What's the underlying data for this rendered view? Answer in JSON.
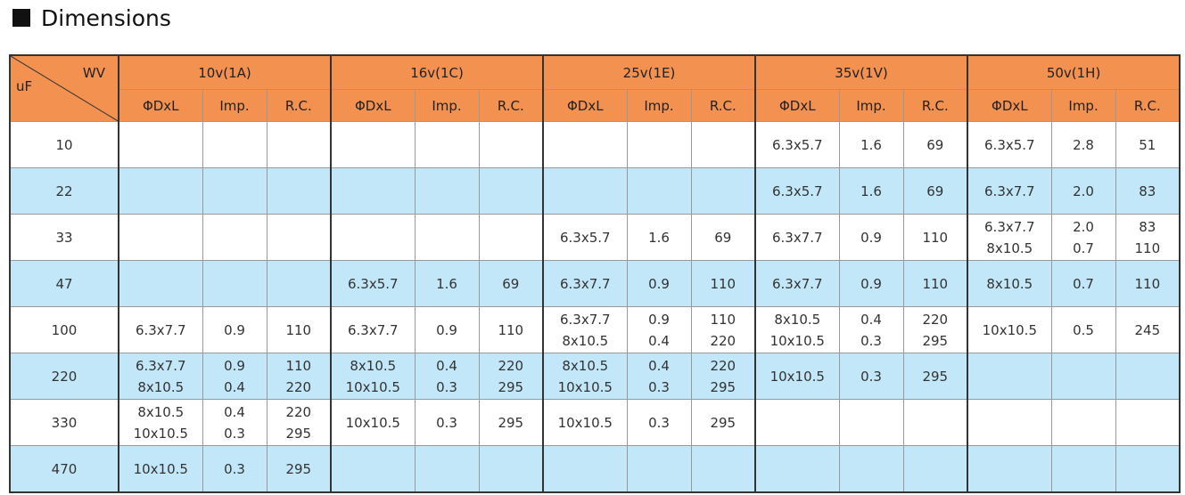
{
  "title": "Dimensions",
  "header": {
    "wv": "WV",
    "uf": "uF",
    "groups": [
      "10v(1A)",
      "16v(1C)",
      "25v(1E)",
      "35v(1V)",
      "50v(1H)"
    ],
    "subheaders": [
      "ΦDxL",
      "Imp.",
      "R.C."
    ]
  },
  "table": {
    "rows": [
      {
        "uf": "10",
        "cells": [
          [],
          [],
          [],
          [],
          [],
          [],
          [],
          [],
          [],
          [
            "6.3x5.7"
          ],
          [
            "1.6"
          ],
          [
            "69"
          ],
          [
            "6.3x5.7"
          ],
          [
            "2.8"
          ],
          [
            "51"
          ]
        ]
      },
      {
        "uf": "22",
        "cells": [
          [],
          [],
          [],
          [],
          [],
          [],
          [],
          [],
          [],
          [
            "6.3x5.7"
          ],
          [
            "1.6"
          ],
          [
            "69"
          ],
          [
            "6.3x7.7"
          ],
          [
            "2.0"
          ],
          [
            "83"
          ]
        ]
      },
      {
        "uf": "33",
        "cells": [
          [],
          [],
          [],
          [],
          [],
          [],
          [
            "6.3x5.7"
          ],
          [
            "1.6"
          ],
          [
            "69"
          ],
          [
            "6.3x7.7"
          ],
          [
            "0.9"
          ],
          [
            "110"
          ],
          [
            "6.3x7.7",
            "8x10.5"
          ],
          [
            "2.0",
            "0.7"
          ],
          [
            "83",
            "110"
          ]
        ]
      },
      {
        "uf": "47",
        "cells": [
          [],
          [],
          [],
          [
            "6.3x5.7"
          ],
          [
            "1.6"
          ],
          [
            "69"
          ],
          [
            "6.3x7.7"
          ],
          [
            "0.9"
          ],
          [
            "110"
          ],
          [
            "6.3x7.7"
          ],
          [
            "0.9"
          ],
          [
            "110"
          ],
          [
            "8x10.5"
          ],
          [
            "0.7"
          ],
          [
            "110"
          ]
        ]
      },
      {
        "uf": "100",
        "cells": [
          [
            "6.3x7.7"
          ],
          [
            "0.9"
          ],
          [
            "110"
          ],
          [
            "6.3x7.7"
          ],
          [
            "0.9"
          ],
          [
            "110"
          ],
          [
            "6.3x7.7",
            "8x10.5"
          ],
          [
            "0.9",
            "0.4"
          ],
          [
            "110",
            "220"
          ],
          [
            "8x10.5",
            "10x10.5"
          ],
          [
            "0.4",
            "0.3"
          ],
          [
            "220",
            "295"
          ],
          [
            "10x10.5"
          ],
          [
            "0.5"
          ],
          [
            "245"
          ]
        ]
      },
      {
        "uf": "220",
        "cells": [
          [
            "6.3x7.7",
            "8x10.5"
          ],
          [
            "0.9",
            "0.4"
          ],
          [
            "110",
            "220"
          ],
          [
            "8x10.5",
            "10x10.5"
          ],
          [
            "0.4",
            "0.3"
          ],
          [
            "220",
            "295"
          ],
          [
            "8x10.5",
            "10x10.5"
          ],
          [
            "0.4",
            "0.3"
          ],
          [
            "220",
            "295"
          ],
          [
            "10x10.5"
          ],
          [
            "0.3"
          ],
          [
            "295"
          ],
          [],
          [],
          []
        ]
      },
      {
        "uf": "330",
        "cells": [
          [
            "8x10.5",
            "10x10.5"
          ],
          [
            "0.4",
            "0.3"
          ],
          [
            "220",
            "295"
          ],
          [
            "10x10.5"
          ],
          [
            "0.3"
          ],
          [
            "295"
          ],
          [
            "10x10.5"
          ],
          [
            "0.3"
          ],
          [
            "295"
          ],
          [],
          [],
          [],
          [],
          [],
          []
        ]
      },
      {
        "uf": "470",
        "cells": [
          [
            "10x10.5"
          ],
          [
            "0.3"
          ],
          [
            "295"
          ],
          [],
          [],
          [],
          [],
          [],
          [],
          [],
          [],
          [],
          [],
          [],
          []
        ]
      }
    ]
  }
}
